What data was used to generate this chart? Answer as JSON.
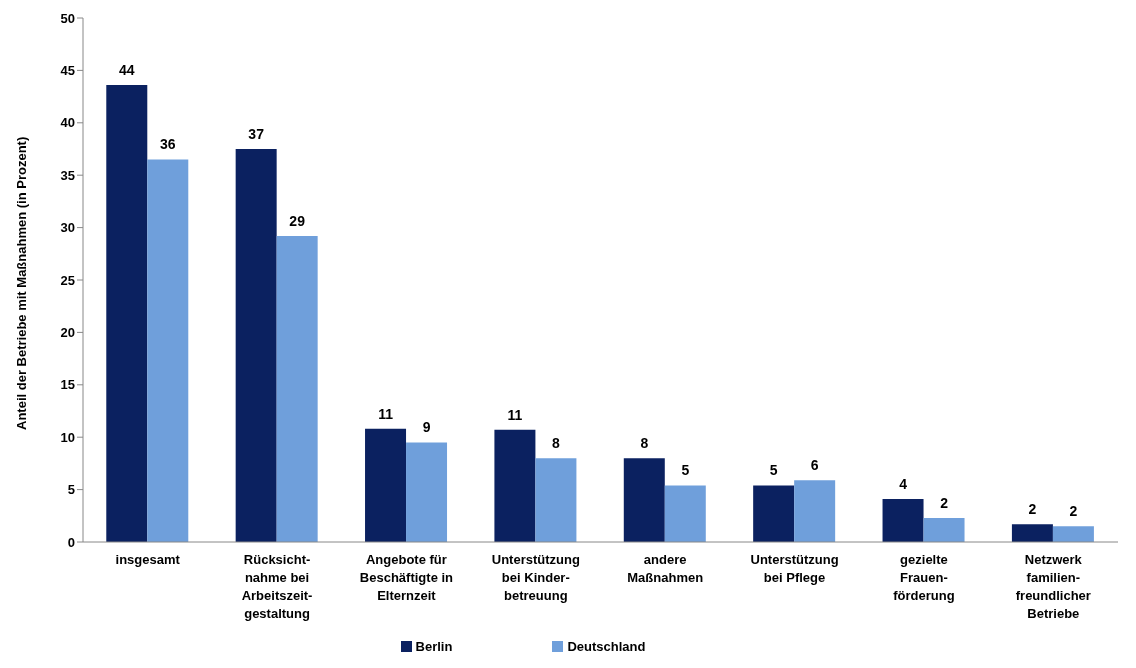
{
  "chart_data": {
    "type": "bar",
    "ylabel": "Anteil der Betriebe mit Maßnahmen (in Prozent)",
    "categories": [
      "insgesamt",
      "Rücksicht-\nnahme bei\nArbeitszeit-\ngestaltung",
      "Angebote für\nBeschäftigte in\nElternzeit",
      "Unterstützung\nbei Kinder-\nbetreuung",
      "andere\nMaßnahmen",
      "Unterstützung\nbei Pflege",
      "gezielte\nFrauen-\nförderung",
      "Netzwerk\nfamilien-\nfreundlicher\nBetriebe"
    ],
    "series": [
      {
        "name": "Berlin",
        "color": "#0b2160",
        "values": [
          43.6,
          37.5,
          10.8,
          10.7,
          8.0,
          5.4,
          4.1,
          1.7
        ],
        "value_labels": [
          "44",
          "37",
          "11",
          "11",
          "8",
          "5",
          "4",
          "2"
        ]
      },
      {
        "name": "Deutschland",
        "color": "#6f9fdb",
        "values": [
          36.5,
          29.2,
          9.5,
          8.0,
          5.4,
          5.9,
          2.3,
          1.5
        ],
        "value_labels": [
          "36",
          "29",
          "9",
          "8",
          "5",
          "6",
          "2",
          "2"
        ]
      }
    ],
    "ylim": [
      0,
      50
    ],
    "yticks": [
      0,
      5,
      10,
      15,
      20,
      25,
      30,
      35,
      40,
      45,
      50
    ],
    "grid": false,
    "legend": "bottom"
  }
}
